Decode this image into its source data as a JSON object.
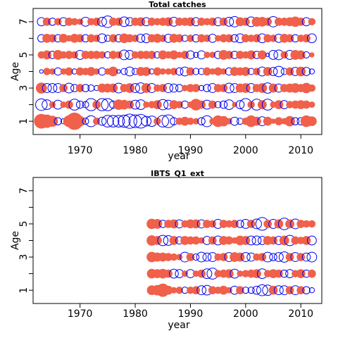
{
  "chart_data": [
    {
      "type": "scatter",
      "title": "Total catches",
      "xlabel": "year",
      "ylabel": "Age",
      "xlim": [
        1961.5,
        2013.8
      ],
      "ylim": [
        0.2,
        7.8
      ],
      "xticks": [
        1970,
        1980,
        1990,
        2000,
        2010
      ],
      "yticks": [
        1,
        3,
        5,
        7
      ],
      "years": [
        1963,
        2012
      ],
      "ages": [
        1,
        2,
        3,
        4,
        5,
        6,
        7
      ],
      "colors": {
        "positive": "#f0604a",
        "negative": "#0000ee"
      },
      "residuals": [
        [
          1.6,
          1.3,
          0.9,
          -0.4,
          -0.2,
          1.0,
          2.2,
          0.8,
          -0.3,
          -0.9,
          0.4,
          -0.5,
          -1.0,
          -1.0,
          -1.0,
          -1.1,
          -1.5,
          -1.2,
          -1.4,
          -0.7,
          -0.8,
          0.4,
          -1.0,
          -1.2,
          -0.4,
          0.4,
          0.6,
          0.4,
          0.3,
          -0.4,
          -0.9,
          0.3,
          1.0,
          0.8,
          0.3,
          -0.5,
          -0.3,
          0.4,
          1.0,
          0.6,
          -0.6,
          0.6,
          0.2,
          0.5,
          0.3,
          0.8,
          -0.4,
          -0.4,
          1.0,
          0.7
        ],
        [
          -1.0,
          -0.7,
          0.3,
          -0.6,
          0.3,
          0.5,
          -0.9,
          -0.4,
          -0.3,
          -1.1,
          0.5,
          -1.1,
          -1.1,
          -0.4,
          0.8,
          0.7,
          0.5,
          -0.6,
          -0.7,
          0.3,
          0.4,
          0.6,
          -0.8,
          -0.6,
          0.6,
          0.4,
          -0.4,
          0.3,
          1.0,
          0.5,
          -0.6,
          0.5,
          -0.3,
          -0.4,
          -0.7,
          0.2,
          -0.5,
          -1.1,
          0.4,
          -0.9,
          0.6,
          -0.9,
          0.3,
          0.6,
          -0.5,
          0.4,
          0.5,
          0.6,
          0.5,
          0.3
        ],
        [
          0.9,
          -0.6,
          -0.6,
          -0.6,
          0.5,
          -0.7,
          -0.4,
          0.5,
          -0.4,
          -0.3,
          -0.2,
          0.6,
          0.6,
          0.6,
          -0.7,
          0.5,
          0.7,
          -0.6,
          -0.8,
          0.7,
          -0.6,
          0.4,
          0.5,
          -0.6,
          -0.5,
          -0.4,
          0.3,
          0.5,
          0.5,
          -0.2,
          -0.4,
          -0.6,
          0.5,
          0.5,
          -0.7,
          -0.6,
          0.6,
          0.7,
          -0.6,
          0.5,
          0.7,
          -0.8,
          0.6,
          -0.5,
          0.5,
          0.6,
          0.7,
          0.5,
          0.8,
          0.4
        ],
        [
          -0.1,
          0.4,
          0.3,
          -0.4,
          0.3,
          0.5,
          -0.2,
          0.5,
          0.4,
          0.6,
          0.3,
          -0.4,
          0.3,
          0.7,
          -0.1,
          -0.3,
          -0.6,
          -0.3,
          0.6,
          0.6,
          -0.2,
          0.5,
          0.3,
          0.3,
          0.4,
          -0.4,
          -0.6,
          0.5,
          -0.3,
          -0.3,
          0.5,
          0.3,
          0.5,
          0.3,
          -0.4,
          0.6,
          0.5,
          0.6,
          -0.3,
          0.4,
          -0.6,
          0.6,
          -0.5,
          -0.8,
          -0.3,
          0.5,
          -0.5,
          0.7,
          -0.5,
          -0.2
        ],
        [
          0.4,
          0.6,
          -0.4,
          0.7,
          0.4,
          0.5,
          0.4,
          -0.6,
          0.5,
          0.5,
          0.5,
          0.4,
          -0.3,
          0.5,
          0.4,
          -0.7,
          -0.6,
          0.4,
          0.5,
          0.5,
          0.5,
          -0.3,
          0.6,
          0.4,
          0.6,
          0.3,
          0.5,
          -0.5,
          -0.2,
          -0.5,
          0.3,
          0.3,
          -0.4,
          0.7,
          0.5,
          -0.4,
          0.5,
          0.4,
          0.6,
          -0.4,
          0.6,
          -0.1,
          -0.6,
          -0.7,
          0.4,
          -0.6,
          0.7,
          0.6,
          -0.3,
          0.2
        ],
        [
          -0.4,
          0.6,
          0.5,
          -0.4,
          0.6,
          0.3,
          0.6,
          0.5,
          -0.4,
          0.5,
          0.4,
          -0.6,
          -0.3,
          0.5,
          -0.4,
          0.7,
          0.5,
          0.4,
          -0.5,
          -0.6,
          0.5,
          0.6,
          0.4,
          -0.5,
          0.6,
          0.5,
          -0.3,
          0.4,
          -0.4,
          0.5,
          0.4,
          -0.5,
          0.3,
          0.5,
          0.5,
          -0.4,
          -0.6,
          0.5,
          0.4,
          0.5,
          -0.6,
          0.5,
          0.4,
          -0.5,
          0.6,
          0.5,
          -0.4,
          0.4,
          0.5,
          -0.6
        ],
        [
          -0.5,
          0.5,
          -0.4,
          0.4,
          -0.5,
          0.5,
          0.4,
          0.3,
          -0.6,
          0.4,
          0.5,
          -0.6,
          -1.0,
          0.5,
          0.5,
          -0.7,
          -0.5,
          0.5,
          0.6,
          -0.5,
          0.5,
          0.4,
          0.5,
          0.6,
          -0.6,
          0.5,
          0.5,
          0.6,
          -0.5,
          0.5,
          0.4,
          0.5,
          -0.5,
          0.5,
          -0.6,
          -0.8,
          0.6,
          0.5,
          -0.7,
          0.7,
          0.7,
          0.5,
          -0.8,
          0.5,
          0.5,
          0.6,
          0.8,
          0.5,
          -0.5,
          0.4
        ]
      ]
    },
    {
      "type": "scatter",
      "title": "IBTS_Q1_ext",
      "xlabel": "year",
      "ylabel": "Age",
      "xlim": [
        1961.5,
        2013.8
      ],
      "ylim": [
        0.2,
        7.8
      ],
      "xticks": [
        1970,
        1980,
        1990,
        2000,
        2010
      ],
      "yticks": [
        1,
        3,
        5,
        7
      ],
      "years": [
        1983,
        2012
      ],
      "ages": [
        1,
        2,
        3,
        4,
        5
      ],
      "colors": {
        "positive": "#f0604a",
        "negative": "#0000ee"
      },
      "residuals": [
        [
          0.7,
          0.8,
          1.3,
          0.6,
          0.3,
          0.4,
          -0.3,
          0.4,
          0.5,
          -0.6,
          -0.7,
          0.5,
          0.4,
          0.6,
          0.3,
          -0.5,
          0.5,
          -0.3,
          -0.3,
          -0.5,
          -0.9,
          -0.8,
          0.6,
          -0.6,
          -0.6,
          0.5,
          -0.6,
          0.5,
          -0.4,
          -0.2
        ],
        [
          0.7,
          0.6,
          0.7,
          0.5,
          -0.6,
          -0.5,
          0.3,
          -0.5,
          0.3,
          0.5,
          -0.7,
          -0.9,
          0.4,
          0.5,
          0.6,
          -0.6,
          0.3,
          0.4,
          0.5,
          0.6,
          -0.7,
          0.4,
          0.6,
          0.5,
          -0.4,
          -0.5,
          0.4,
          0.6,
          -0.4,
          0.5
        ],
        [
          0.8,
          0.6,
          0.6,
          0.5,
          0.4,
          0.3,
          -0.7,
          0.5,
          -0.3,
          -0.7,
          -0.5,
          -0.6,
          0.4,
          0.5,
          -0.6,
          0.7,
          0.6,
          -0.6,
          -0.5,
          0.4,
          0.5,
          -0.7,
          -0.4,
          -0.6,
          -0.8,
          0.5,
          -0.6,
          0.5,
          -0.5,
          -0.7
        ],
        [
          0.8,
          0.6,
          -0.8,
          -0.7,
          0.6,
          -0.4,
          0.6,
          0.5,
          0.5,
          0.3,
          -0.5,
          0.5,
          -0.6,
          0.6,
          0.5,
          0.3,
          0.7,
          0.6,
          -0.6,
          -0.6,
          -0.5,
          0.6,
          0.5,
          -0.5,
          0.7,
          -0.8,
          0.5,
          0.4,
          0.6,
          -0.6
        ],
        [
          0.8,
          0.7,
          -0.4,
          0.5,
          0.6,
          -0.5,
          0.4,
          0.6,
          0.6,
          -0.5,
          0.5,
          0.4,
          -0.6,
          0.5,
          0.4,
          0.5,
          -0.4,
          -0.6,
          0.5,
          -0.7,
          -1.2,
          0.5,
          -0.6,
          0.6,
          -1.0,
          0.6,
          -0.7,
          0.5,
          0.4,
          0.4
        ]
      ]
    }
  ]
}
